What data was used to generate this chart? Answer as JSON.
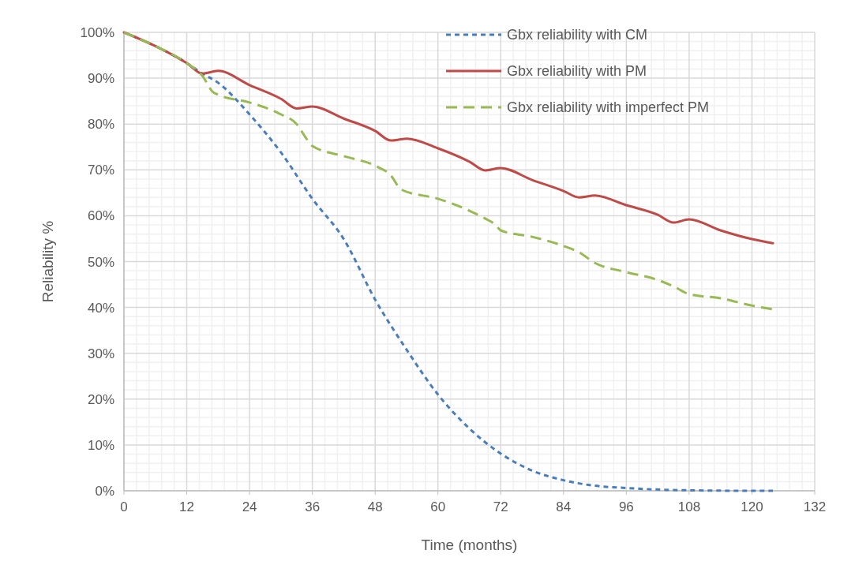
{
  "chart_data": {
    "type": "line",
    "xlabel": "Time (months)",
    "ylabel": "Reliability %",
    "xlim": [
      0,
      132
    ],
    "xticks": [
      0,
      12,
      24,
      36,
      48,
      60,
      72,
      84,
      96,
      108,
      120,
      132
    ],
    "ylim": [
      0,
      100
    ],
    "yticks": [
      {
        "value": 0,
        "label": "0%"
      },
      {
        "value": 10,
        "label": "10%"
      },
      {
        "value": 20,
        "label": "20%"
      },
      {
        "value": 30,
        "label": "30%"
      },
      {
        "value": 40,
        "label": "40%"
      },
      {
        "value": 50,
        "label": "50%"
      },
      {
        "value": 60,
        "label": "60%"
      },
      {
        "value": 70,
        "label": "70%"
      },
      {
        "value": 80,
        "label": "80%"
      },
      {
        "value": 90,
        "label": "90%"
      },
      {
        "value": 100,
        "label": "100%"
      }
    ],
    "grid": true,
    "legend": "top right",
    "marker": "none",
    "series": [
      {
        "name": "Gbx reliability with CM",
        "color": "#4a7ebb",
        "line_style": "dotted",
        "x": [
          0,
          6,
          12,
          15,
          18,
          24,
          30,
          36,
          42,
          48,
          54,
          60,
          66,
          72,
          78,
          84,
          90,
          96,
          108,
          120,
          124
        ],
        "values": [
          100,
          97,
          93.3,
          91,
          89,
          82.1,
          73.8,
          63.7,
          54.9,
          41.7,
          30.8,
          21,
          13.6,
          8.1,
          4.4,
          2.3,
          1.1,
          0.6,
          0.1,
          0,
          0
        ]
      },
      {
        "name": "Gbx reliability with PM",
        "color": "#be4b48",
        "line_style": "solid",
        "x": [
          0,
          6,
          12,
          15,
          18,
          24,
          30,
          33,
          36,
          42,
          48,
          51,
          54,
          60,
          66,
          69,
          72,
          78,
          84,
          87,
          90,
          96,
          102,
          105,
          108,
          114,
          120,
          124
        ],
        "values": [
          100,
          97,
          93.3,
          91,
          91.6,
          88.5,
          85.5,
          83.4,
          83.8,
          81.2,
          78.5,
          76.4,
          76.8,
          74.7,
          71.8,
          69.9,
          70.4,
          67.8,
          65.4,
          64,
          64.4,
          62.3,
          60.2,
          58.5,
          59.2,
          56.8,
          54.9,
          54
        ]
      },
      {
        "name": "Gbx reliability with imperfect PM",
        "color": "#98b954",
        "line_style": "dashed",
        "x": [
          0,
          6,
          12,
          15,
          17,
          18,
          24,
          30,
          33,
          35,
          36,
          42,
          48,
          51,
          53,
          60,
          66,
          69,
          71,
          72,
          78,
          84,
          87,
          90,
          96,
          102,
          105,
          108,
          114,
          120,
          124
        ],
        "values": [
          100,
          97,
          93.3,
          90.5,
          87,
          86.4,
          84.7,
          82.1,
          80,
          76.6,
          75.2,
          73,
          70.9,
          68.8,
          65.7,
          63.7,
          61.1,
          59.4,
          58,
          56.8,
          55.4,
          53.4,
          52,
          49.7,
          47.7,
          46,
          44.6,
          42.9,
          42,
          40.4,
          39.6
        ]
      }
    ]
  }
}
